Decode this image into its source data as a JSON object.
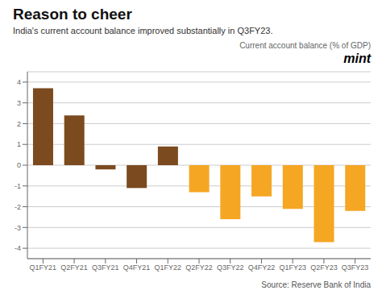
{
  "chart_data": {
    "type": "bar",
    "title": "Reason to cheer",
    "subtitle": "India's current account balance improved substantially in Q3FY23.",
    "annotations": [
      "Current account balance (% of GDP)",
      "mint"
    ],
    "source": "Source: Reserve Bank of India",
    "categories": [
      "Q1FY21",
      "Q2FY21",
      "Q3FY21",
      "Q4FY21",
      "Q1FY22",
      "Q2FY22",
      "Q3FY22",
      "Q4FY22",
      "Q1FY23",
      "Q2FY23",
      "Q3FY23"
    ],
    "values": [
      3.7,
      2.4,
      -0.2,
      -1.1,
      0.9,
      -1.3,
      -2.6,
      -1.5,
      -2.1,
      -3.7,
      -2.2
    ],
    "colors": [
      "#7B4A1E",
      "#7B4A1E",
      "#7B4A1E",
      "#7B4A1E",
      "#7B4A1E",
      "#F5A623",
      "#F5A623",
      "#F5A623",
      "#F5A623",
      "#F5A623",
      "#F5A623"
    ],
    "ylim": [
      -4.5,
      4.5
    ],
    "yticks": [
      -4,
      -3,
      -2,
      -1,
      0,
      1,
      2,
      3,
      4
    ],
    "grid": true
  }
}
